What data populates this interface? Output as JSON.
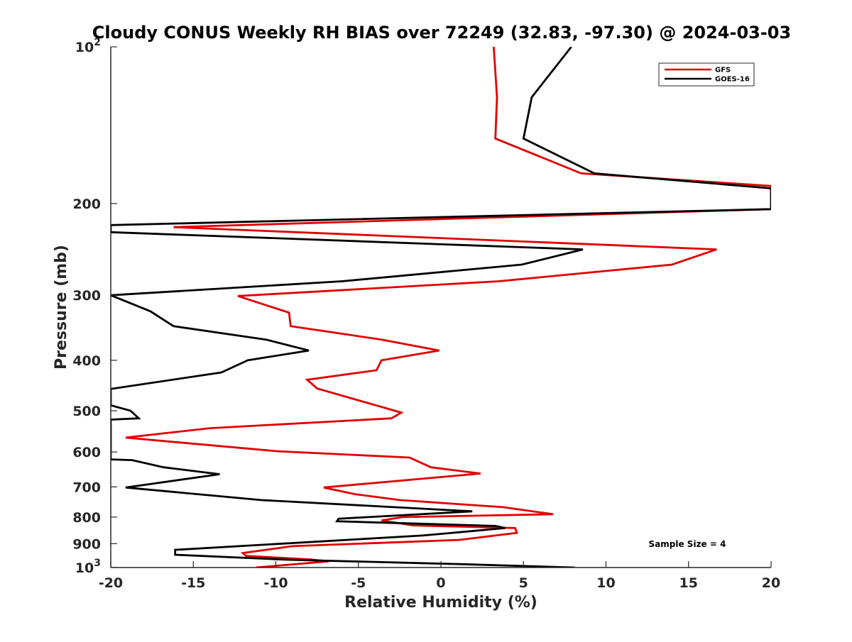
{
  "chart_data": {
    "type": "line",
    "title": "Cloudy CONUS Weekly RH BIAS over 72249 (32.83, -97.30) @ 2024-03-03",
    "xlabel": "Relative Humidity (%)",
    "ylabel": "Pressure (mb)",
    "xlim": [
      -20,
      20
    ],
    "ylim": [
      100,
      1000
    ],
    "yscale": "log",
    "y_reversed": true,
    "x_ticks": [
      {
        "value": -20,
        "label": "-20"
      },
      {
        "value": -15,
        "label": "-15"
      },
      {
        "value": -10,
        "label": "-10"
      },
      {
        "value": -5,
        "label": "-5"
      },
      {
        "value": 0,
        "label": "0"
      },
      {
        "value": 5,
        "label": "5"
      },
      {
        "value": 10,
        "label": "10"
      },
      {
        "value": 15,
        "label": "15"
      },
      {
        "value": 20,
        "label": "20"
      }
    ],
    "y_ticks": [
      {
        "value": 100,
        "base": "10",
        "exp": "2"
      },
      {
        "value": 200,
        "base": "200",
        "exp": ""
      },
      {
        "value": 300,
        "base": "300",
        "exp": ""
      },
      {
        "value": 400,
        "base": "400",
        "exp": ""
      },
      {
        "value": 500,
        "base": "500",
        "exp": ""
      },
      {
        "value": 600,
        "base": "600",
        "exp": ""
      },
      {
        "value": 700,
        "base": "700",
        "exp": ""
      },
      {
        "value": 800,
        "base": "800",
        "exp": ""
      },
      {
        "value": 900,
        "base": "900",
        "exp": ""
      },
      {
        "value": 1000,
        "base": "10",
        "exp": "3"
      }
    ],
    "grid": false,
    "legend_position": "top-right",
    "annotation": "Sample Size = 4",
    "series": [
      {
        "name": "GFS",
        "color": "#e00000",
        "points": [
          [
            3.2,
            100
          ],
          [
            3.4,
            125
          ],
          [
            3.3,
            150
          ],
          [
            8.5,
            175
          ],
          [
            20,
            185
          ],
          [
            20,
            205
          ],
          [
            -16.2,
            222
          ],
          [
            16.7,
            245
          ],
          [
            14.0,
            262
          ],
          [
            3.5,
            282
          ],
          [
            -12.3,
            301
          ],
          [
            -9.2,
            324
          ],
          [
            -9.1,
            344
          ],
          [
            -3.6,
            365
          ],
          [
            -0.1,
            383
          ],
          [
            -3.6,
            400
          ],
          [
            -3.9,
            418
          ],
          [
            -8.1,
            436
          ],
          [
            -7.5,
            453
          ],
          [
            -2.4,
            504
          ],
          [
            -3.0,
            517
          ],
          [
            -14.0,
            540
          ],
          [
            -19.1,
            563
          ],
          [
            -9.9,
            598
          ],
          [
            -1.9,
            615
          ],
          [
            -0.6,
            642
          ],
          [
            2.4,
            660
          ],
          [
            -7.1,
            702
          ],
          [
            -5.2,
            723
          ],
          [
            -2.5,
            742
          ],
          [
            3.8,
            766
          ],
          [
            6.8,
            790
          ],
          [
            -2.3,
            800
          ],
          [
            -3.6,
            812
          ],
          [
            -1.7,
            830
          ],
          [
            4.5,
            840
          ],
          [
            4.6,
            858
          ],
          [
            1.1,
            885
          ],
          [
            -9.0,
            910
          ],
          [
            -12.0,
            938
          ],
          [
            -11.8,
            950
          ],
          [
            -7.9,
            965
          ],
          [
            -6.8,
            973
          ],
          [
            -11.2,
            1000
          ]
        ]
      },
      {
        "name": "GOES-16",
        "color": "#000000",
        "points": [
          [
            7.9,
            100
          ],
          [
            5.5,
            125
          ],
          [
            5.0,
            150
          ],
          [
            9.3,
            175
          ],
          [
            20,
            187
          ],
          [
            20,
            205
          ],
          [
            -20,
            220
          ],
          [
            -20,
            227
          ],
          [
            8.6,
            245
          ],
          [
            4.9,
            262
          ],
          [
            -6.0,
            282
          ],
          [
            -20,
            300
          ],
          [
            -17.6,
            322
          ],
          [
            -16.2,
            344
          ],
          [
            -10.6,
            365
          ],
          [
            -8.0,
            383
          ],
          [
            -11.7,
            400
          ],
          [
            -13.3,
            422
          ],
          [
            -20,
            454
          ],
          [
            -20,
            488
          ],
          [
            -18.8,
            500
          ],
          [
            -18.3,
            517
          ],
          [
            -20,
            520
          ],
          [
            -20,
            620
          ],
          [
            -18.7,
            622
          ],
          [
            -16.8,
            642
          ],
          [
            -13.4,
            662
          ],
          [
            -19.1,
            702
          ],
          [
            -10.9,
            742
          ],
          [
            1.9,
            780
          ],
          [
            -6.2,
            806
          ],
          [
            -6.3,
            815
          ],
          [
            3.3,
            832
          ],
          [
            3.9,
            840
          ],
          [
            -1.1,
            868
          ],
          [
            -16.1,
            925
          ],
          [
            -16.1,
            945
          ],
          [
            -9.3,
            966
          ],
          [
            1.1,
            985
          ],
          [
            8.1,
            1000
          ]
        ]
      }
    ]
  }
}
